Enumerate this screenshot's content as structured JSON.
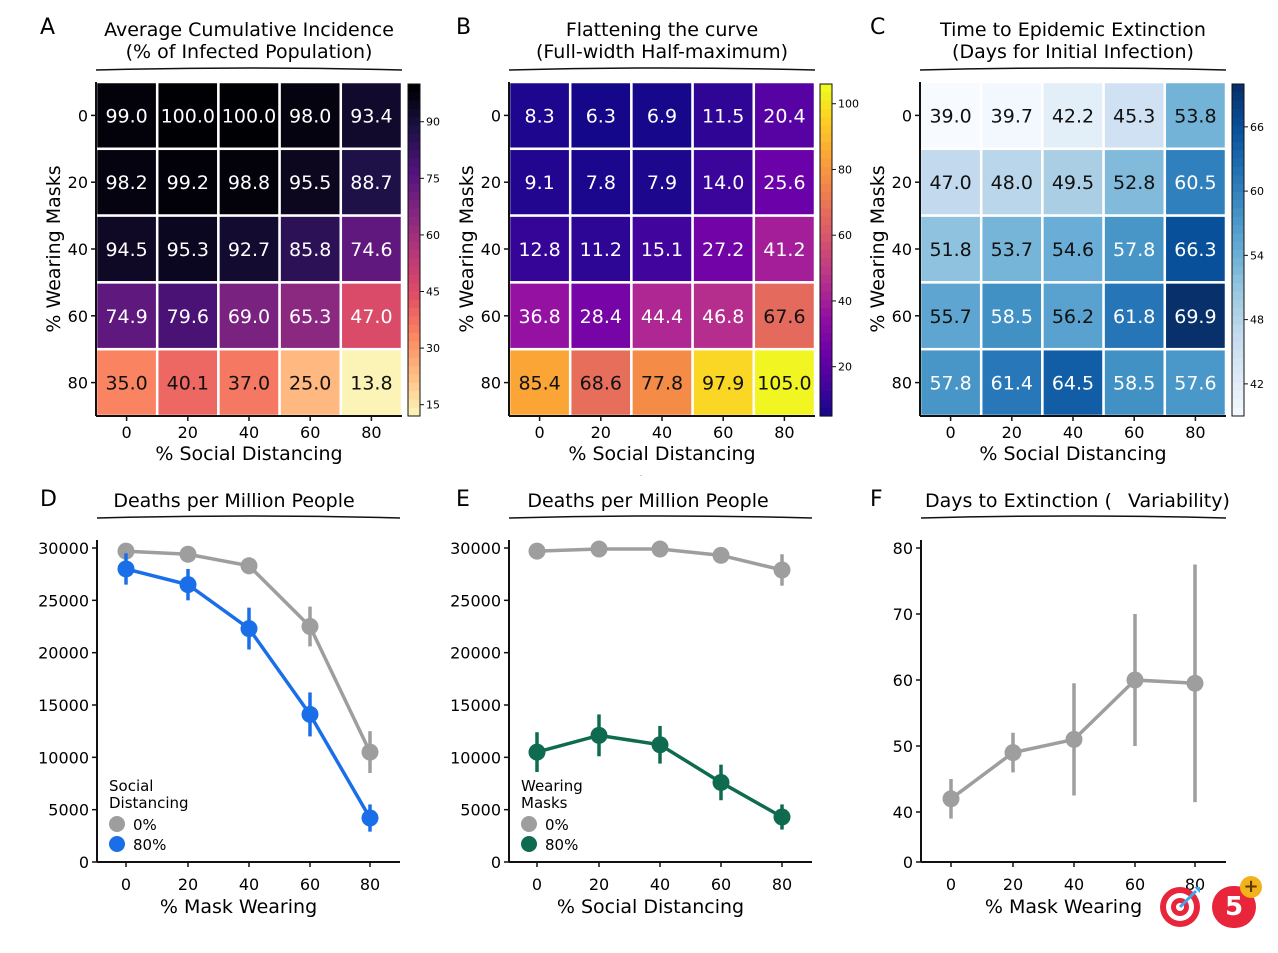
{
  "heatmaps": [
    {
      "panel": "A",
      "title_line1": "Average Cumulative Incidence",
      "title_line2": "(% of Infected Population)",
      "xlabel": "% Social Distancing",
      "ylabel": "% Wearing Masks",
      "x_ticks": [
        "0",
        "20",
        "40",
        "60",
        "80"
      ],
      "y_ticks": [
        "0",
        "20",
        "40",
        "60",
        "80"
      ],
      "values": [
        [
          "99.0",
          "100.0",
          "100.0",
          "98.0",
          "93.4"
        ],
        [
          "98.2",
          "99.2",
          "98.8",
          "95.5",
          "88.7"
        ],
        [
          "94.5",
          "95.3",
          "92.7",
          "85.8",
          "74.6"
        ],
        [
          "74.9",
          "79.6",
          "69.0",
          "65.3",
          "47.0"
        ],
        [
          "35.0",
          "40.1",
          "37.0",
          "25.0",
          "13.8"
        ]
      ],
      "colormap": "magma_r",
      "colorbar_ticks": [
        "15",
        "30",
        "45",
        "60",
        "75",
        "90"
      ],
      "colorbar_range": [
        12,
        100
      ]
    },
    {
      "panel": "B",
      "title_line1": "Flattening the curve",
      "title_line2": "(Full-width Half-maximum)",
      "xlabel": "% Social Distancing",
      "ylabel": "% Wearing Masks",
      "x_ticks": [
        "0",
        "20",
        "40",
        "60",
        "80"
      ],
      "y_ticks": [
        "0",
        "20",
        "40",
        "60",
        "80"
      ],
      "values": [
        [
          "8.3",
          "6.3",
          "6.9",
          "11.5",
          "20.4"
        ],
        [
          "9.1",
          "7.8",
          "7.9",
          "14.0",
          "25.6"
        ],
        [
          "12.8",
          "11.2",
          "15.1",
          "27.2",
          "41.2"
        ],
        [
          "36.8",
          "28.4",
          "44.4",
          "46.8",
          "67.6"
        ],
        [
          "85.4",
          "68.6",
          "77.8",
          "97.9",
          "105.0"
        ]
      ],
      "colormap": "plasma",
      "colorbar_ticks": [
        "20",
        "40",
        "60",
        "80",
        "100"
      ],
      "colorbar_range": [
        5,
        106
      ]
    },
    {
      "panel": "C",
      "title_line1": "Time to Epidemic Extinction",
      "title_line2": "(Days for Initial Infection)",
      "xlabel": "% Social Distancing",
      "ylabel": "% Wearing Masks",
      "x_ticks": [
        "0",
        "20",
        "40",
        "60",
        "80"
      ],
      "y_ticks": [
        "0",
        "20",
        "40",
        "60",
        "80"
      ],
      "values": [
        [
          "39.0",
          "39.7",
          "42.2",
          "45.3",
          "53.8"
        ],
        [
          "47.0",
          "48.0",
          "49.5",
          "52.8",
          "60.5"
        ],
        [
          "51.8",
          "53.7",
          "54.6",
          "57.8",
          "66.3"
        ],
        [
          "55.7",
          "58.5",
          "56.2",
          "61.8",
          "69.9"
        ],
        [
          "57.8",
          "61.4",
          "64.5",
          "58.5",
          "57.6"
        ]
      ],
      "colormap": "Blues",
      "colorbar_ticks": [
        "42",
        "48",
        "54",
        "60",
        "66"
      ],
      "colorbar_range": [
        39,
        70
      ]
    }
  ],
  "chart_data": [
    {
      "type": "line",
      "panel": "D",
      "title": "Deaths per Million People",
      "xlabel": "% Mask Wearing",
      "ylabel": "",
      "x": [
        0,
        20,
        40,
        60,
        80
      ],
      "x_ticks": [
        "0",
        "20",
        "40",
        "60",
        "80"
      ],
      "y_ticks": [
        "0",
        "5000",
        "10000",
        "15000",
        "20000",
        "25000",
        "30000"
      ],
      "ylim": [
        0,
        31500
      ],
      "legend_title": [
        "Social",
        "Distancing"
      ],
      "legend_position": "bottom-left",
      "series": [
        {
          "name": "0%",
          "color": "#9e9e9e",
          "values": [
            29700,
            29400,
            28300,
            22500,
            10500
          ],
          "err": [
            500,
            500,
            800,
            1900,
            2000
          ]
        },
        {
          "name": "80%",
          "color": "#1a6fe8",
          "values": [
            28000,
            26500,
            22300,
            14100,
            4200
          ],
          "err": [
            1500,
            1500,
            2000,
            2100,
            1300
          ]
        }
      ]
    },
    {
      "type": "line",
      "panel": "E",
      "title": "Deaths per Million People",
      "xlabel": "% Social Distancing",
      "ylabel": "",
      "x": [
        0,
        20,
        40,
        60,
        80
      ],
      "x_ticks": [
        "0",
        "20",
        "40",
        "60",
        "80"
      ],
      "y_ticks": [
        "0",
        "5000",
        "10000",
        "15000",
        "20000",
        "25000",
        "30000"
      ],
      "ylim": [
        0,
        31500
      ],
      "legend_title": [
        "Wearing",
        "Masks"
      ],
      "legend_position": "bottom-left",
      "series": [
        {
          "name": "0%",
          "color": "#9e9e9e",
          "values": [
            29700,
            29900,
            29900,
            29300,
            27900
          ],
          "err": [
            400,
            400,
            400,
            700,
            1500
          ]
        },
        {
          "name": "80%",
          "color": "#0f6b4f",
          "values": [
            10500,
            12100,
            11200,
            7600,
            4300
          ],
          "err": [
            1900,
            2000,
            1800,
            1700,
            1200
          ]
        }
      ]
    },
    {
      "type": "line",
      "panel": "F",
      "title": "Days to Extinction (",
      "title_suffix": "Variability)",
      "xlabel": "% Mask Wearing",
      "ylabel": "",
      "x": [
        0,
        20,
        40,
        60,
        80
      ],
      "x_ticks": [
        "0",
        "20",
        "40",
        "60",
        "80"
      ],
      "y_ticks": [
        "0",
        "40",
        "50",
        "60",
        "70",
        "80"
      ],
      "y_axis_break": true,
      "ylim": [
        33,
        82
      ],
      "series": [
        {
          "name": "",
          "color": "#9e9e9e",
          "values": [
            42,
            49,
            51,
            60,
            59.5
          ],
          "err": [
            3,
            3,
            8.5,
            10,
            18
          ]
        }
      ]
    }
  ],
  "badges": {
    "target_icon": "target-icon",
    "counter_value": "5",
    "plus_sign": "+"
  }
}
